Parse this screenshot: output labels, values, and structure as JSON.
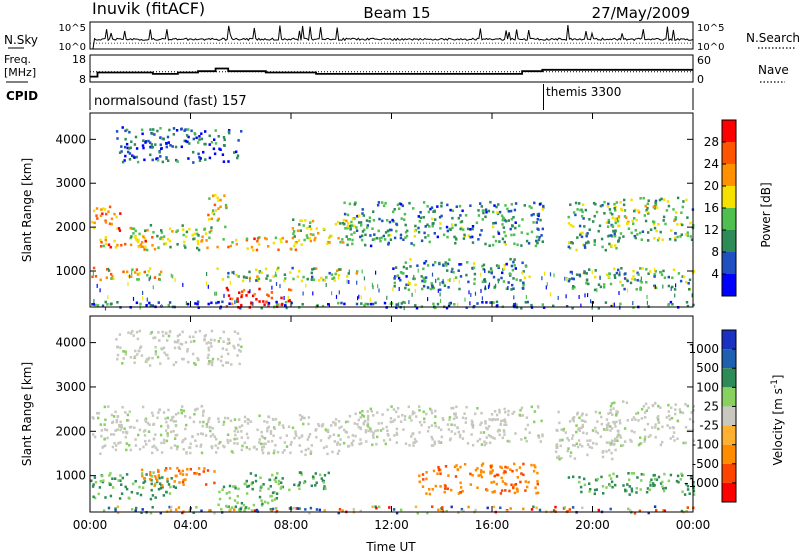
{
  "header": {
    "station": "Inuvik (fitACF)",
    "beam": "Beam 15",
    "date": "27/May/2009"
  },
  "left_labels": {
    "nsky": "N.Sky",
    "freq_line1": "Freq.",
    "freq_line2": "[MHz]",
    "cpid": "CPID"
  },
  "right_labels": {
    "nsearch": "N.Search",
    "nave": "Nave"
  },
  "cpid_segments": [
    {
      "label": "normalsound (fast) 157",
      "start_hour": 0
    },
    {
      "label": "themis 3300",
      "start_hour": 18.05
    }
  ],
  "colors": {
    "power": [
      "#0000ff",
      "#1f4fc0",
      "#2e8b57",
      "#4fc04f",
      "#f5e000",
      "#ff9000",
      "#ff5500",
      "#ff0000"
    ],
    "velocity": [
      "#ff0000",
      "#ff4400",
      "#ff8c00",
      "#ffb030",
      "#c8c8c0",
      "#88d060",
      "#2e8b57",
      "#1f5fb0",
      "#1a30c0"
    ]
  },
  "chart_data": [
    {
      "type": "line",
      "panel": "N.Sky",
      "xlabel": "",
      "ylabel": "N.Sky",
      "x_range_hours": [
        0,
        24
      ],
      "y_ticks": [
        "10^5",
        "10^0"
      ],
      "right_ylabel": "N.Search",
      "right_y_ticks": [
        "10^5",
        "10^0"
      ]
    },
    {
      "type": "line",
      "panel": "Frequency / Nave",
      "ylabel": "Freq. [MHz]",
      "y_ticks": [
        18,
        8
      ],
      "right_ylabel": "Nave",
      "right_y_ticks": [
        60,
        0
      ],
      "freq_steps": [
        {
          "x": 0.0,
          "y": 10.0
        },
        {
          "x": 0.3,
          "y": 11.5
        },
        {
          "x": 2.5,
          "y": 11.0
        },
        {
          "x": 3.5,
          "y": 11.5
        },
        {
          "x": 4.3,
          "y": 12.0
        },
        {
          "x": 5.0,
          "y": 13.0
        },
        {
          "x": 5.5,
          "y": 12.0
        },
        {
          "x": 7.0,
          "y": 11.5
        },
        {
          "x": 9.0,
          "y": 11.0
        },
        {
          "x": 13.0,
          "y": 11.0
        },
        {
          "x": 16.5,
          "y": 11.0
        },
        {
          "x": 17.2,
          "y": 12.0
        },
        {
          "x": 18.0,
          "y": 12.5
        },
        {
          "x": 24.0,
          "y": 12.5
        }
      ]
    },
    {
      "type": "heatmap",
      "panel": "Power",
      "xlabel": "",
      "ylabel": "Slant Range [km]",
      "x_range_hours": [
        0,
        24
      ],
      "ylim": [
        180,
        4600
      ],
      "y_ticks": [
        1000,
        2000,
        3000,
        4000
      ],
      "colorbar_label": "Power [dB]",
      "colorbar_ticks": [
        4,
        8,
        12,
        16,
        20,
        24,
        28
      ],
      "color_range": [
        0,
        32
      ],
      "bands": [
        {
          "t0": 0.0,
          "t1": 1.2,
          "r0": 1900,
          "r1": 2500,
          "level": 24
        },
        {
          "t0": 0.3,
          "t1": 2.8,
          "r0": 1500,
          "r1": 1800,
          "level": 22
        },
        {
          "t0": 0.0,
          "t1": 2.8,
          "r0": 800,
          "r1": 1100,
          "level": 20
        },
        {
          "t0": 1.5,
          "t1": 4.8,
          "r0": 1500,
          "r1": 2100,
          "level": 16
        },
        {
          "t0": 4.6,
          "t1": 5.4,
          "r0": 2000,
          "r1": 2800,
          "level": 18
        },
        {
          "t0": 5.0,
          "t1": 8.2,
          "r0": 1500,
          "r1": 1800,
          "level": 22
        },
        {
          "t0": 5.3,
          "t1": 8.0,
          "r0": 200,
          "r1": 650,
          "level": 28
        },
        {
          "t0": 5.0,
          "t1": 8.5,
          "r0": 800,
          "r1": 1100,
          "level": 14
        },
        {
          "t0": 8.0,
          "t1": 10.5,
          "r0": 1600,
          "r1": 2200,
          "level": 16
        },
        {
          "t0": 8.5,
          "t1": 11.0,
          "r0": 800,
          "r1": 1100,
          "level": 14
        },
        {
          "t0": 10.0,
          "t1": 18.0,
          "r0": 1600,
          "r1": 2600,
          "level": 10
        },
        {
          "t0": 12.0,
          "t1": 17.5,
          "r0": 600,
          "r1": 1300,
          "level": 10
        },
        {
          "t0": 19.0,
          "t1": 21.0,
          "r0": 1500,
          "r1": 2600,
          "level": 12
        },
        {
          "t0": 19.0,
          "t1": 24.0,
          "r0": 600,
          "r1": 1100,
          "level": 12
        },
        {
          "t0": 20.5,
          "t1": 24.0,
          "r0": 1700,
          "r1": 2700,
          "level": 14
        },
        {
          "t0": 0.0,
          "t1": 24.0,
          "r0": 180,
          "r1": 330,
          "level": 8
        },
        {
          "t0": 1.0,
          "t1": 6.0,
          "r0": 3500,
          "r1": 4300,
          "level": 6
        }
      ]
    },
    {
      "type": "heatmap",
      "panel": "Velocity",
      "xlabel": "Time UT",
      "ylabel": "Slant Range [km]",
      "x_ticks": [
        "00:00",
        "04:00",
        "08:00",
        "12:00",
        "16:00",
        "20:00",
        "00:00"
      ],
      "x_tick_hours": [
        0,
        4,
        8,
        12,
        16,
        20,
        24
      ],
      "ylim": [
        180,
        4600
      ],
      "y_ticks": [
        1000,
        2000,
        3000,
        4000
      ],
      "colorbar_label": "Velocity [m s^-1]",
      "colorbar_ticks": [
        "1000",
        "500",
        "100",
        "25",
        "-25",
        "-100",
        "-500",
        "-1000"
      ],
      "bands": [
        {
          "t0": 0.0,
          "t1": 4.5,
          "r0": 1500,
          "r1": 2600,
          "class": "grey"
        },
        {
          "t0": 0.0,
          "t1": 3.5,
          "r0": 500,
          "r1": 1100,
          "class": "green"
        },
        {
          "t0": 2.0,
          "t1": 5.0,
          "r0": 800,
          "r1": 1200,
          "class": "orange"
        },
        {
          "t0": 4.5,
          "t1": 10.5,
          "r0": 1500,
          "r1": 2400,
          "class": "grey"
        },
        {
          "t0": 5.0,
          "t1": 7.5,
          "r0": 200,
          "r1": 900,
          "class": "lightgreen"
        },
        {
          "t0": 6.0,
          "t1": 9.5,
          "r0": 700,
          "r1": 1100,
          "class": "green"
        },
        {
          "t0": 10.5,
          "t1": 18.0,
          "r0": 1700,
          "r1": 2600,
          "class": "grey"
        },
        {
          "t0": 13.0,
          "t1": 17.8,
          "r0": 600,
          "r1": 1300,
          "class": "orange"
        },
        {
          "t0": 18.5,
          "t1": 21.0,
          "r0": 1400,
          "r1": 2500,
          "class": "grey"
        },
        {
          "t0": 19.0,
          "t1": 24.0,
          "r0": 600,
          "r1": 1100,
          "class": "green"
        },
        {
          "t0": 20.5,
          "t1": 24.0,
          "r0": 1700,
          "r1": 2700,
          "class": "grey"
        },
        {
          "t0": 0.0,
          "t1": 24.0,
          "r0": 180,
          "r1": 330,
          "class": "mixed"
        },
        {
          "t0": 1.0,
          "t1": 6.0,
          "r0": 3500,
          "r1": 4300,
          "class": "grey"
        }
      ]
    }
  ]
}
